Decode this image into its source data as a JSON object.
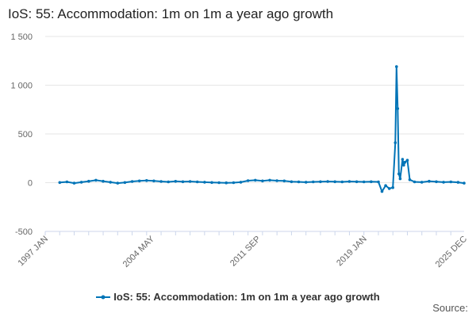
{
  "title": "IoS: 55: Accommodation: 1m on 1m a year ago growth",
  "source_label": "Source:",
  "colors": {
    "series": "#0074B7",
    "grid": "#e6e6e6",
    "axis_text": "#666666"
  },
  "chart_data": {
    "type": "line",
    "title": "IoS: 55: Accommodation: 1m on 1m a year ago growth",
    "xlabel": "",
    "ylabel": "",
    "ylim": [
      -500,
      1500
    ],
    "yticks": [
      -500,
      0,
      500,
      1000,
      1500
    ],
    "ytick_labels": [
      "-500",
      "0",
      "500",
      "1 000",
      "1 500"
    ],
    "x_range": [
      "1997 JAN",
      "2025 DEC"
    ],
    "xtick_labels": [
      "1997 JAN",
      "2004 MAY",
      "2011 SEP",
      "2019 JAN",
      "2025 DEC"
    ],
    "grid": true,
    "legend": "bottom",
    "series": [
      {
        "name": "IoS: 55: Accommodation: 1m on 1m a year ago growth",
        "color": "#0074B7",
        "points": [
          [
            "1998 JAN",
            2
          ],
          [
            "1998 JUL",
            8
          ],
          [
            "1999 JAN",
            -5
          ],
          [
            "1999 JUL",
            5
          ],
          [
            "2000 JAN",
            15
          ],
          [
            "2000 JUL",
            25
          ],
          [
            "2001 JAN",
            15
          ],
          [
            "2001 JUL",
            5
          ],
          [
            "2002 JAN",
            -5
          ],
          [
            "2002 JUL",
            2
          ],
          [
            "2003 JAN",
            12
          ],
          [
            "2003 JUL",
            18
          ],
          [
            "2004 JAN",
            22
          ],
          [
            "2004 JUL",
            18
          ],
          [
            "2005 JAN",
            12
          ],
          [
            "2005 JUL",
            8
          ],
          [
            "2006 JAN",
            14
          ],
          [
            "2006 JUL",
            10
          ],
          [
            "2007 JAN",
            12
          ],
          [
            "2007 JUL",
            8
          ],
          [
            "2008 JAN",
            5
          ],
          [
            "2008 JUL",
            2
          ],
          [
            "2009 JAN",
            0
          ],
          [
            "2009 JUL",
            -2
          ],
          [
            "2010 JAN",
            0
          ],
          [
            "2010 JUL",
            5
          ],
          [
            "2011 JAN",
            20
          ],
          [
            "2011 JUL",
            25
          ],
          [
            "2012 JAN",
            18
          ],
          [
            "2012 JUL",
            25
          ],
          [
            "2013 JAN",
            20
          ],
          [
            "2013 JUL",
            18
          ],
          [
            "2014 JAN",
            10
          ],
          [
            "2014 JUL",
            8
          ],
          [
            "2015 JAN",
            5
          ],
          [
            "2015 JUL",
            8
          ],
          [
            "2016 JAN",
            10
          ],
          [
            "2016 JUL",
            12
          ],
          [
            "2017 JAN",
            10
          ],
          [
            "2017 JUL",
            8
          ],
          [
            "2018 JAN",
            12
          ],
          [
            "2018 JUL",
            10
          ],
          [
            "2019 JAN",
            8
          ],
          [
            "2019 JUL",
            10
          ],
          [
            "2020 JAN",
            8
          ],
          [
            "2020 APR",
            -90
          ],
          [
            "2020 JUL",
            -30
          ],
          [
            "2020 OCT",
            -60
          ],
          [
            "2021 JAN",
            -50
          ],
          [
            "2021 MAR",
            410
          ],
          [
            "2021 APR",
            1190
          ],
          [
            "2021 MAY",
            760
          ],
          [
            "2021 JUN",
            90
          ],
          [
            "2021 JUL",
            40
          ],
          [
            "2021 SEP",
            240
          ],
          [
            "2021 OCT",
            180
          ],
          [
            "2021 NOV",
            210
          ],
          [
            "2022 JAN",
            230
          ],
          [
            "2022 MAR",
            30
          ],
          [
            "2022 JUL",
            8
          ],
          [
            "2023 JAN",
            5
          ],
          [
            "2023 JUL",
            15
          ],
          [
            "2024 JAN",
            10
          ],
          [
            "2024 JUL",
            5
          ],
          [
            "2025 JAN",
            8
          ],
          [
            "2025 JUL",
            3
          ],
          [
            "2025 DEC",
            -5
          ]
        ]
      }
    ]
  }
}
